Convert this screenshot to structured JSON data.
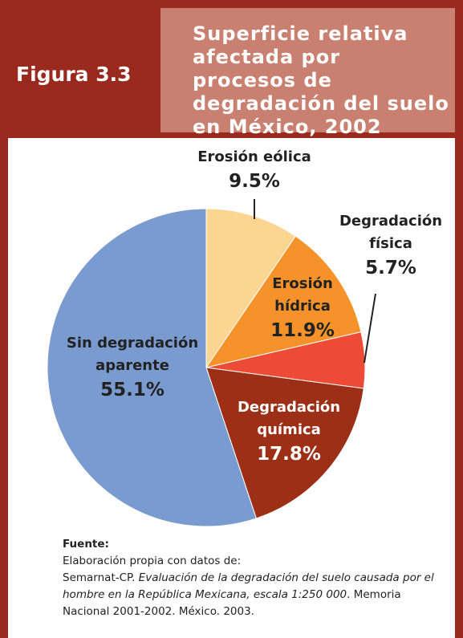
{
  "chart_data": {
    "type": "pie",
    "figure_label": "Figura 3.3",
    "title": "Superficie relativa afectada por procesos de degradación del suelo en México, 2002",
    "categories": [
      "Erosión eólica",
      "Erosión hídrica",
      "Degradación física",
      "Degradación química",
      "Sin degradación aparente"
    ],
    "values": [
      9.5,
      11.9,
      5.7,
      17.8,
      55.1
    ],
    "value_labels": [
      "9.5%",
      "11.9%",
      "5.7%",
      "17.8%",
      "55.1%"
    ],
    "colors": [
      "#fbd592",
      "#f5922a",
      "#ee4b36",
      "#9c2f16",
      "#7a9bcf"
    ]
  },
  "source": {
    "label": "Fuente:",
    "line1": "Elaboración propia con datos de:",
    "prefix": "Semarnat-CP.",
    "italic": "Evaluación de la degradación del suelo causada por el hombre en la República Mexicana, escala 1:250 000",
    "suffix": ". Memoria Nacional 2001-2002. México. 2003."
  }
}
